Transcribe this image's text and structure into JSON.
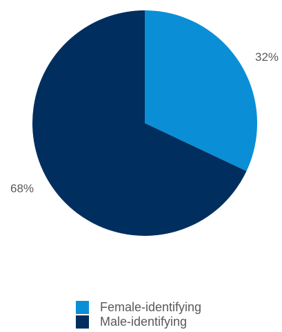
{
  "chart_data": {
    "type": "pie",
    "title": "",
    "slices": [
      {
        "name": "Female-identifying",
        "value": 32,
        "label": "32%",
        "color": "#0a8fd6"
      },
      {
        "name": "Male-identifying",
        "value": 68,
        "label": "68%",
        "color": "#002f5f"
      }
    ],
    "start_angle": "12 o'clock",
    "direction": "clockwise",
    "legend_position": "bottom"
  }
}
